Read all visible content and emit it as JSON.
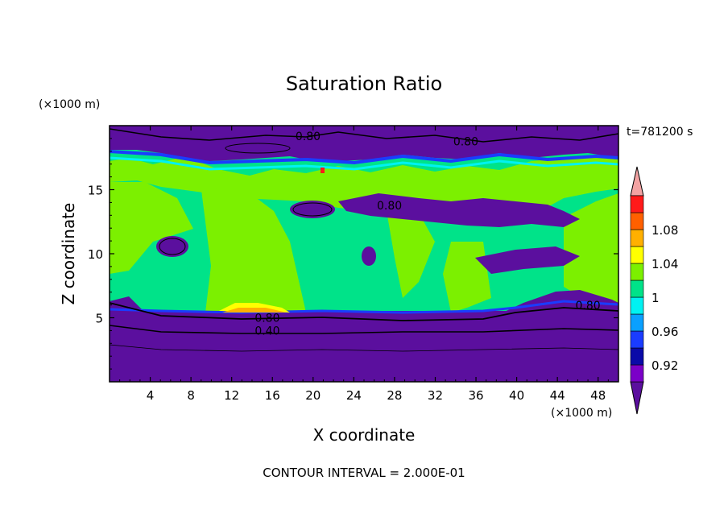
{
  "chart_data": {
    "type": "heatmap",
    "title": "Saturation Ratio",
    "xlabel": "X coordinate",
    "ylabel": "Z coordinate",
    "x_unit": "(×1000 m)",
    "y_unit": "(×1000 m)",
    "time_label": "t=781200 s",
    "footer": "CONTOUR INTERVAL = 2.000E-01",
    "xlim": [
      0,
      50
    ],
    "ylim": [
      0,
      20
    ],
    "x_ticks": [
      4,
      8,
      12,
      16,
      20,
      24,
      28,
      32,
      36,
      40,
      44,
      48
    ],
    "y_ticks": [
      5,
      10,
      15
    ],
    "colorbar": {
      "levels": [
        0.9,
        0.92,
        0.94,
        0.96,
        0.98,
        1.0,
        1.02,
        1.04,
        1.06,
        1.08,
        1.1
      ],
      "tick_labels": [
        "0.92",
        "0.96",
        "1",
        "1.04",
        "1.08"
      ],
      "colors": [
        "#5b0f9e",
        "#7b00c8",
        "#0a0aa8",
        "#1a3cff",
        "#0aa0ff",
        "#00f2f2",
        "#00e389",
        "#7cf000",
        "#ffff00",
        "#ffb000",
        "#ff6000",
        "#ff1a1a",
        "#f3a3a3"
      ]
    },
    "contour_labels": [
      {
        "text": "0.80",
        "x": 19.5,
        "z": 19.0
      },
      {
        "text": "0.80",
        "x": 35.0,
        "z": 18.6
      },
      {
        "text": "0.80",
        "x": 27.5,
        "z": 13.6
      },
      {
        "text": "0.80",
        "x": 15.5,
        "z": 4.8
      },
      {
        "text": "0.40",
        "x": 15.5,
        "z": 3.8
      },
      {
        "text": "0.80",
        "x": 47.0,
        "z": 5.8
      }
    ]
  }
}
